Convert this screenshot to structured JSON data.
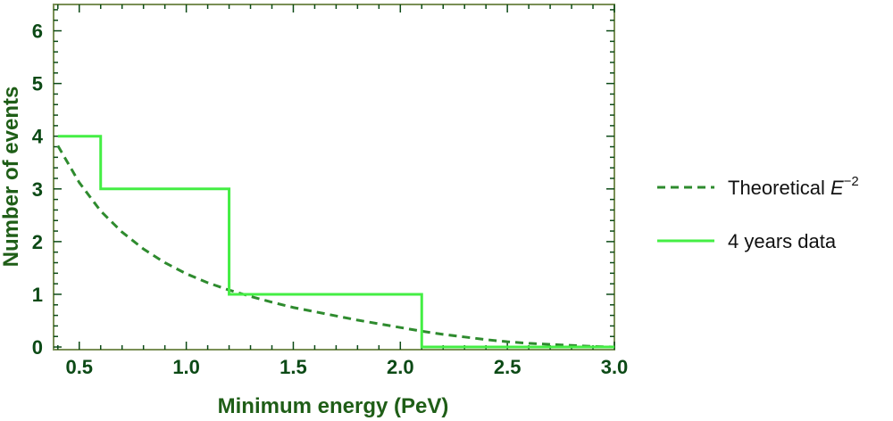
{
  "chart_data": {
    "type": "line",
    "title": "",
    "xlabel": "Minimum energy (PeV)",
    "ylabel": "Number of events",
    "xlim": [
      0.38,
      3.0
    ],
    "ylim": [
      -0.05,
      6.5
    ],
    "xticks": [
      "0.5",
      "1.0",
      "1.5",
      "2.0",
      "2.5",
      "3.0"
    ],
    "xtick_values": [
      0.5,
      1.0,
      1.5,
      2.0,
      2.5,
      3.0
    ],
    "yticks": [
      "0",
      "1",
      "2",
      "3",
      "4",
      "5",
      "6"
    ],
    "ytick_values": [
      0,
      1,
      2,
      3,
      4,
      5,
      6
    ],
    "grid": false,
    "legend_position": "right",
    "series": [
      {
        "name": "Theoretical E^-2",
        "legend_label": "Theoretical ",
        "legend_math": "E",
        "legend_sup": "−2",
        "style": "dashed",
        "color": "#2e8b2e",
        "x": [
          0.4,
          0.5,
          0.6,
          0.7,
          0.8,
          0.9,
          1.0,
          1.1,
          1.2,
          1.3,
          1.4,
          1.5,
          1.6,
          1.7,
          1.8,
          1.9,
          2.0,
          2.1,
          2.2,
          2.3,
          2.4,
          2.5,
          2.6,
          2.7,
          2.8,
          2.9,
          3.0
        ],
        "y": [
          3.82,
          3.12,
          2.58,
          2.18,
          1.86,
          1.6,
          1.39,
          1.22,
          1.08,
          0.96,
          0.85,
          0.75,
          0.67,
          0.59,
          0.51,
          0.44,
          0.37,
          0.3,
          0.24,
          0.19,
          0.14,
          0.1,
          0.07,
          0.05,
          0.03,
          0.01,
          0.0
        ]
      },
      {
        "name": "4 years data",
        "legend_label": "4 years data",
        "style": "step",
        "color": "#44ee44",
        "x": [
          0.4,
          0.6,
          0.6,
          1.2,
          1.2,
          2.1,
          2.1,
          3.0
        ],
        "y": [
          4,
          4,
          3,
          3,
          1,
          1,
          0,
          0
        ]
      }
    ],
    "frame_color": "#7a8f55",
    "tick_color": "#0c4a16"
  }
}
